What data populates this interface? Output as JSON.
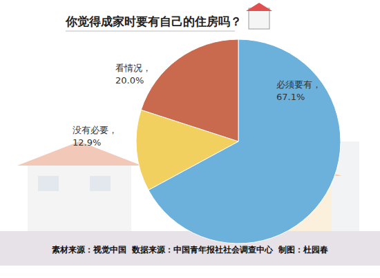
{
  "chart_data": {
    "type": "pie",
    "title": "你觉得成家时要有自己的住房吗？",
    "categories": [
      "必须要有，",
      "没有必要，",
      "看情况，"
    ],
    "values": [
      67.1,
      12.9,
      20.0
    ],
    "value_labels": [
      "67.1%",
      "12.9%",
      "20.0%"
    ],
    "colors": [
      "#6cb0dc",
      "#f2d060",
      "#c96a4e"
    ],
    "data_labels": true,
    "annotations": [
      "素材来源：视觉中国  数据来源：中国青年报社社会调查中心  制图：杜园春"
    ]
  }
}
